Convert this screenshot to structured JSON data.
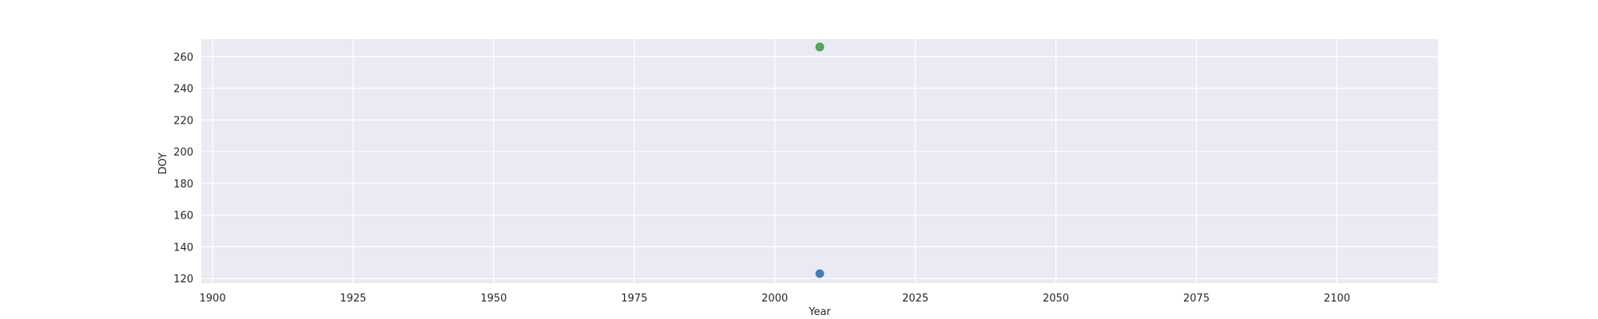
{
  "chart_data": {
    "type": "scatter",
    "title": "",
    "xlabel": "Year",
    "ylabel": "DOY",
    "xlim": [
      1898,
      2118
    ],
    "ylim": [
      117,
      271
    ],
    "xticks": [
      1900,
      1925,
      1950,
      1975,
      2000,
      2025,
      2050,
      2075,
      2100
    ],
    "yticks": [
      120,
      140,
      160,
      180,
      200,
      220,
      240,
      260
    ],
    "grid": true,
    "legend": "none",
    "series": [
      {
        "color": "#3a7fc1",
        "points": [
          {
            "x": 2008,
            "y": 123
          }
        ]
      },
      {
        "color": "#4caf50",
        "points": [
          {
            "x": 2008,
            "y": 266
          }
        ]
      }
    ]
  },
  "colors": {
    "plot_background": "#eaeaf2",
    "grid": "#ffffff",
    "text": "#262626"
  }
}
